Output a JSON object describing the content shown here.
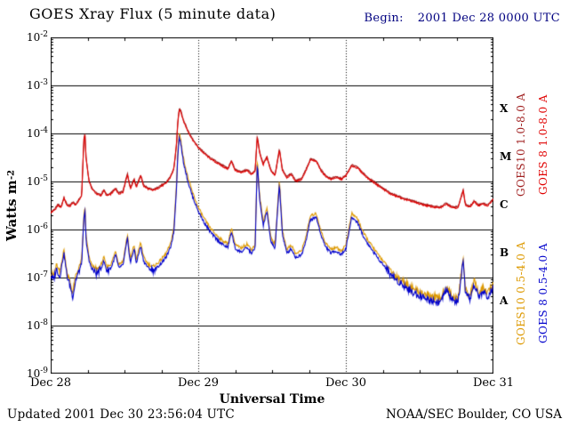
{
  "header": {
    "title": "GOES Xray Flux (5 minute data)",
    "begin_label": "Begin:",
    "begin_value": "2001 Dec 28 0000 UTC",
    "begin_color": "#000080"
  },
  "axes": {
    "y_title_base": "Watts m",
    "y_title_exp": "-2",
    "x_title": "Universal Time"
  },
  "footer": {
    "updated": "Updated 2001 Dec 30 23:56:04 UTC",
    "credit": "NOAA/SEC Boulder, CO USA"
  },
  "chart_data": {
    "type": "line",
    "title": "GOES Xray Flux (5 minute data)",
    "xlabel": "Universal Time",
    "ylabel": "Watts m^-2",
    "y_scale": "log",
    "ylim": [
      1e-09,
      0.01
    ],
    "xlim_days": [
      0,
      3
    ],
    "x_tick_positions": [
      0,
      1,
      2,
      3
    ],
    "x_tick_labels": [
      "Dec 28",
      "Dec 29",
      "Dec 30",
      "Dec 31"
    ],
    "y_tick_exponents": [
      -2,
      -3,
      -4,
      -5,
      -6,
      -7,
      -8,
      -9
    ],
    "grid_exponents": [
      -3,
      -4,
      -5,
      -6,
      -7,
      -8
    ],
    "day_gridlines": [
      1,
      2
    ],
    "flare_classes": [
      {
        "label": "X",
        "log_center": -3.5
      },
      {
        "label": "M",
        "log_center": -4.5
      },
      {
        "label": "C",
        "log_center": -5.5
      },
      {
        "label": "B",
        "log_center": -6.5
      },
      {
        "label": "A",
        "log_center": -7.5
      }
    ],
    "series": [
      {
        "name": "GOES10 1.0-8.0 A",
        "color": "#a02020",
        "derive_from": "goes8_long",
        "factor": 1.05,
        "channel": "long"
      },
      {
        "name": "GOES 8 1.0-8.0 A",
        "color": "#e00000",
        "key": "goes8_long",
        "channel": "long"
      },
      {
        "name": "GOES10 0.5-4.0 A",
        "color": "#dd9900",
        "derive_from": "goes8_short",
        "factor": 1.2,
        "channel": "short"
      },
      {
        "name": "GOES 8 0.5-4.0 A",
        "color": "#0000cc",
        "key": "goes8_short",
        "channel": "short"
      }
    ],
    "points": {
      "goes8_long": [
        [
          0.0,
          2.2e-06
        ],
        [
          0.03,
          2.6e-06
        ],
        [
          0.05,
          3.2e-06
        ],
        [
          0.07,
          2.8e-06
        ],
        [
          0.09,
          4.5e-06
        ],
        [
          0.11,
          3.2e-06
        ],
        [
          0.13,
          3e-06
        ],
        [
          0.15,
          3.6e-06
        ],
        [
          0.17,
          3.2e-06
        ],
        [
          0.19,
          4e-06
        ],
        [
          0.21,
          5e-06
        ],
        [
          0.225,
          7.5e-05
        ],
        [
          0.232,
          9.5e-05
        ],
        [
          0.24,
          3e-05
        ],
        [
          0.26,
          1e-05
        ],
        [
          0.28,
          7e-06
        ],
        [
          0.31,
          5.5e-06
        ],
        [
          0.34,
          5e-06
        ],
        [
          0.36,
          6.5e-06
        ],
        [
          0.38,
          5e-06
        ],
        [
          0.41,
          5.5e-06
        ],
        [
          0.44,
          7e-06
        ],
        [
          0.46,
          5.5e-06
        ],
        [
          0.49,
          6e-06
        ],
        [
          0.52,
          1.4e-05
        ],
        [
          0.54,
          7e-06
        ],
        [
          0.565,
          1.1e-05
        ],
        [
          0.58,
          7.5e-06
        ],
        [
          0.61,
          1.3e-05
        ],
        [
          0.63,
          8e-06
        ],
        [
          0.66,
          7e-06
        ],
        [
          0.69,
          6.5e-06
        ],
        [
          0.72,
          7e-06
        ],
        [
          0.75,
          8e-06
        ],
        [
          0.78,
          9e-06
        ],
        [
          0.81,
          1.2e-05
        ],
        [
          0.835,
          1.8e-05
        ],
        [
          0.853,
          6e-05
        ],
        [
          0.862,
          0.00018
        ],
        [
          0.872,
          0.00032
        ],
        [
          0.882,
          0.00028
        ],
        [
          0.9,
          0.00018
        ],
        [
          0.93,
          0.00011
        ],
        [
          0.96,
          7.5e-05
        ],
        [
          1.0,
          5e-05
        ],
        [
          1.04,
          3.8e-05
        ],
        [
          1.08,
          3e-05
        ],
        [
          1.12,
          2.5e-05
        ],
        [
          1.16,
          2.1e-05
        ],
        [
          1.2,
          1.8e-05
        ],
        [
          1.225,
          2.6e-05
        ],
        [
          1.25,
          1.7e-05
        ],
        [
          1.29,
          1.5e-05
        ],
        [
          1.33,
          1.7e-05
        ],
        [
          1.36,
          1.4e-05
        ],
        [
          1.385,
          1.6e-05
        ],
        [
          1.4,
          8.5e-05
        ],
        [
          1.415,
          4e-05
        ],
        [
          1.44,
          2.2e-05
        ],
        [
          1.465,
          3.2e-05
        ],
        [
          1.49,
          1.7e-05
        ],
        [
          1.52,
          1.3e-05
        ],
        [
          1.55,
          4.5e-05
        ],
        [
          1.57,
          1.7e-05
        ],
        [
          1.6,
          1.2e-05
        ],
        [
          1.63,
          1.4e-05
        ],
        [
          1.66,
          1e-05
        ],
        [
          1.7,
          1.1e-05
        ],
        [
          1.73,
          1.7e-05
        ],
        [
          1.76,
          2.8e-05
        ],
        [
          1.8,
          2.6e-05
        ],
        [
          1.83,
          1.7e-05
        ],
        [
          1.86,
          1.3e-05
        ],
        [
          1.9,
          1.1e-05
        ],
        [
          1.93,
          1.2e-05
        ],
        [
          1.97,
          1.1e-05
        ],
        [
          2.0,
          1.3e-05
        ],
        [
          2.04,
          2.1e-05
        ],
        [
          2.08,
          1.9e-05
        ],
        [
          2.12,
          1.4e-05
        ],
        [
          2.16,
          1.1e-05
        ],
        [
          2.2,
          9e-06
        ],
        [
          2.25,
          7e-06
        ],
        [
          2.3,
          5.5e-06
        ],
        [
          2.35,
          4.8e-06
        ],
        [
          2.4,
          4.2e-06
        ],
        [
          2.45,
          3.8e-06
        ],
        [
          2.5,
          3.4e-06
        ],
        [
          2.55,
          3.1e-06
        ],
        [
          2.6,
          2.9e-06
        ],
        [
          2.64,
          2.8e-06
        ],
        [
          2.68,
          3.4e-06
        ],
        [
          2.72,
          2.9e-06
        ],
        [
          2.76,
          2.8e-06
        ],
        [
          2.795,
          6.5e-06
        ],
        [
          2.81,
          3.2e-06
        ],
        [
          2.84,
          2.9e-06
        ],
        [
          2.87,
          3.8e-06
        ],
        [
          2.9,
          3.1e-06
        ],
        [
          2.93,
          3.4e-06
        ],
        [
          2.96,
          3.1e-06
        ],
        [
          3.0,
          4.2e-06
        ]
      ],
      "goes8_short": [
        [
          0.0,
          1.1e-07
        ],
        [
          0.02,
          9e-08
        ],
        [
          0.04,
          1.6e-07
        ],
        [
          0.06,
          1e-07
        ],
        [
          0.09,
          3.2e-07
        ],
        [
          0.11,
          1.1e-07
        ],
        [
          0.13,
          7e-08
        ],
        [
          0.15,
          4e-08
        ],
        [
          0.17,
          9e-08
        ],
        [
          0.19,
          1.3e-07
        ],
        [
          0.21,
          2e-07
        ],
        [
          0.225,
          1.6e-06
        ],
        [
          0.232,
          2.6e-06
        ],
        [
          0.24,
          6e-07
        ],
        [
          0.26,
          2.2e-07
        ],
        [
          0.28,
          1.5e-07
        ],
        [
          0.31,
          1.2e-07
        ],
        [
          0.34,
          1.5e-07
        ],
        [
          0.36,
          2.2e-07
        ],
        [
          0.38,
          1.4e-07
        ],
        [
          0.41,
          1.6e-07
        ],
        [
          0.44,
          3e-07
        ],
        [
          0.46,
          1.6e-07
        ],
        [
          0.49,
          1.8e-07
        ],
        [
          0.52,
          6.5e-07
        ],
        [
          0.54,
          2e-07
        ],
        [
          0.565,
          4e-07
        ],
        [
          0.58,
          2e-07
        ],
        [
          0.61,
          4.5e-07
        ],
        [
          0.63,
          2.2e-07
        ],
        [
          0.66,
          1.6e-07
        ],
        [
          0.69,
          1.4e-07
        ],
        [
          0.72,
          1.6e-07
        ],
        [
          0.75,
          2e-07
        ],
        [
          0.78,
          2.6e-07
        ],
        [
          0.81,
          4e-07
        ],
        [
          0.835,
          9e-07
        ],
        [
          0.853,
          8e-06
        ],
        [
          0.862,
          4e-05
        ],
        [
          0.872,
          8.5e-05
        ],
        [
          0.882,
          6e-05
        ],
        [
          0.9,
          2.5e-05
        ],
        [
          0.93,
          1e-05
        ],
        [
          0.96,
          5e-06
        ],
        [
          1.0,
          2.4e-06
        ],
        [
          1.04,
          1.4e-06
        ],
        [
          1.08,
          9e-07
        ],
        [
          1.12,
          6.5e-07
        ],
        [
          1.16,
          5e-07
        ],
        [
          1.2,
          4.2e-07
        ],
        [
          1.225,
          9e-07
        ],
        [
          1.25,
          4e-07
        ],
        [
          1.29,
          3.4e-07
        ],
        [
          1.33,
          4.2e-07
        ],
        [
          1.36,
          3.2e-07
        ],
        [
          1.385,
          4e-07
        ],
        [
          1.4,
          2.4e-05
        ],
        [
          1.415,
          4.5e-06
        ],
        [
          1.44,
          1.2e-06
        ],
        [
          1.465,
          2.4e-06
        ],
        [
          1.49,
          6e-07
        ],
        [
          1.52,
          4e-07
        ],
        [
          1.55,
          9e-06
        ],
        [
          1.57,
          8e-07
        ],
        [
          1.6,
          3.2e-07
        ],
        [
          1.63,
          4e-07
        ],
        [
          1.66,
          2.6e-07
        ],
        [
          1.7,
          3e-07
        ],
        [
          1.73,
          6e-07
        ],
        [
          1.76,
          1.6e-06
        ],
        [
          1.8,
          1.8e-06
        ],
        [
          1.83,
          8e-07
        ],
        [
          1.86,
          4.5e-07
        ],
        [
          1.9,
          3.2e-07
        ],
        [
          1.93,
          3.6e-07
        ],
        [
          1.97,
          3e-07
        ],
        [
          2.0,
          4e-07
        ],
        [
          2.04,
          1.8e-06
        ],
        [
          2.08,
          1.4e-06
        ],
        [
          2.12,
          7e-07
        ],
        [
          2.16,
          4.5e-07
        ],
        [
          2.2,
          3e-07
        ],
        [
          2.25,
          1.9e-07
        ],
        [
          2.3,
          1.2e-07
        ],
        [
          2.35,
          8.5e-08
        ],
        [
          2.4,
          6.5e-08
        ],
        [
          2.45,
          5e-08
        ],
        [
          2.5,
          4.2e-08
        ],
        [
          2.55,
          3.6e-08
        ],
        [
          2.6,
          3.2e-08
        ],
        [
          2.64,
          3e-08
        ],
        [
          2.68,
          5.5e-08
        ],
        [
          2.72,
          3.4e-08
        ],
        [
          2.76,
          3e-08
        ],
        [
          2.795,
          2.2e-07
        ],
        [
          2.81,
          4.5e-08
        ],
        [
          2.84,
          3.6e-08
        ],
        [
          2.87,
          7e-08
        ],
        [
          2.9,
          4e-08
        ],
        [
          2.93,
          5e-08
        ],
        [
          2.96,
          4e-08
        ],
        [
          3.0,
          6e-08
        ]
      ]
    }
  }
}
